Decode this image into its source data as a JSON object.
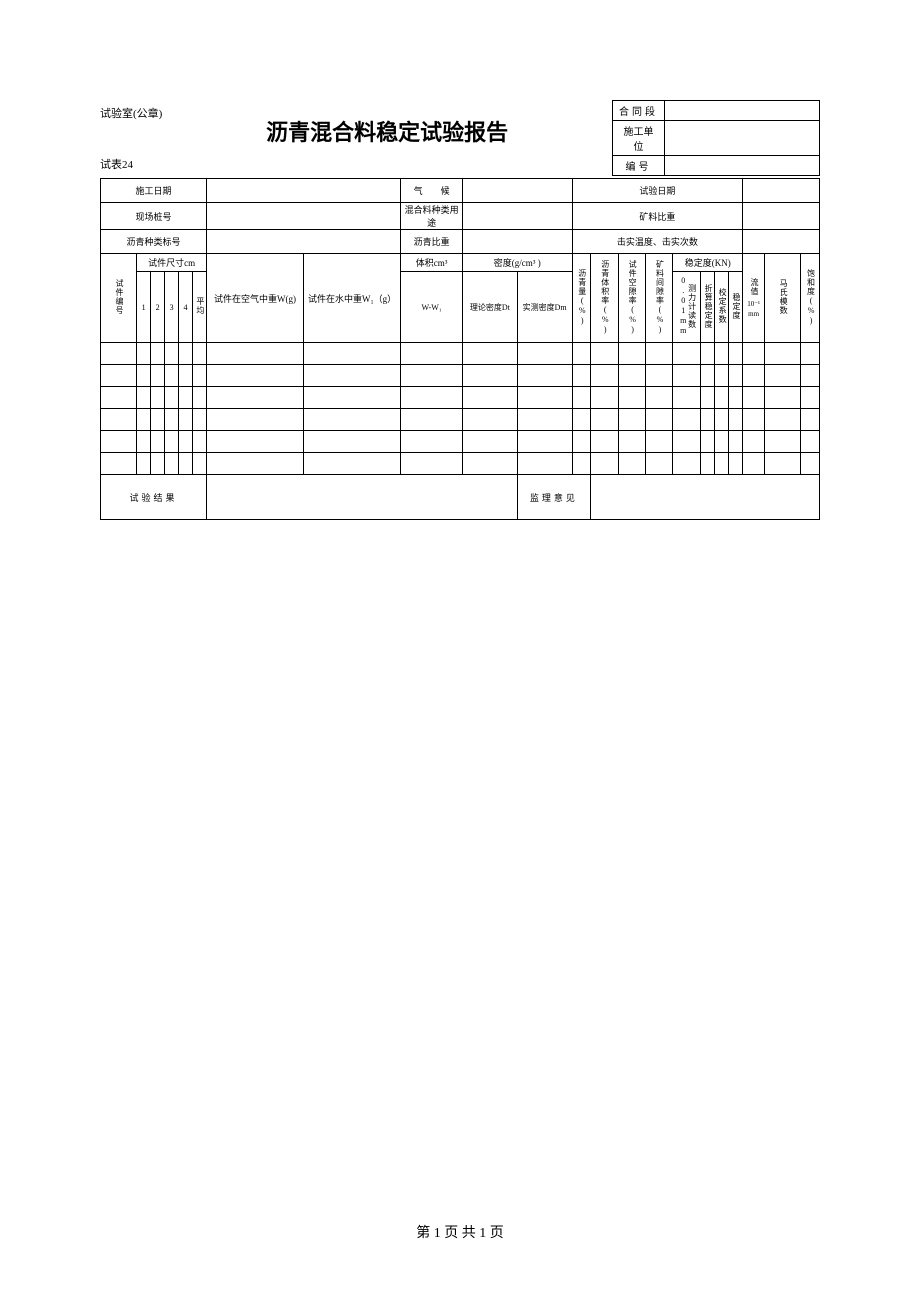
{
  "header": {
    "stamp_label": "试验室(公章)",
    "title": "沥青混合料稳定试验报告",
    "table_num": "试表24",
    "right_box": {
      "row1_label": "合同段",
      "row1_value": "",
      "row2_label": "施工单位",
      "row2_value": "",
      "row3_label": "编号",
      "row3_value": ""
    }
  },
  "info_rows": {
    "r1c1": "施工日期",
    "r1c2": "",
    "r1c3": "气　　候",
    "r1c4": "",
    "r1c5": "试验日期",
    "r1c6": "",
    "r2c1": "现场桩号",
    "r2c2": "",
    "r2c3": "混合料种类用途",
    "r2c4": "",
    "r2c5": "矿料比重",
    "r2c6": "",
    "r3c1": "沥青种类标号",
    "r3c2": "",
    "r3c3": "沥青比重",
    "r3c4": "",
    "r3c5": "击实温度、击实次数",
    "r3c6": ""
  },
  "table_headers": {
    "specimen_no": "试件编号",
    "specimen_size": "试件尺寸cm",
    "size1": "1",
    "size2": "2",
    "size3": "3",
    "size4": "4",
    "avg": "平均",
    "weight_air": "试件在空气中重W(g)",
    "weight_water": "试件在水中重W₁（g）",
    "volume": "体积cm³",
    "volume_sub": "W-W₁",
    "density": "密度(g/cm³ )",
    "density_theory": "理论密度Dt",
    "density_measured": "实测密度Dm",
    "asphalt_content": "沥青量(%)",
    "asphalt_vol": "沥青体积率(%)",
    "void_rate": "试件空隙率(%)",
    "mineral_void": "矿料间隙率(%)",
    "stability": "稳定度(KN)",
    "force_reading": "测力计读数0.01mm",
    "calc_stability": "折算稳定度",
    "correction": "校定系数",
    "stability_val": "稳定度",
    "flow": "流值",
    "flow_unit": "10⁻¹ mm",
    "marshall": "马氏模数",
    "saturation": "饱和度(%)"
  },
  "footer_labels": {
    "test_result": "试验结果",
    "supervisor_opinion": "监理意见"
  },
  "page_footer": "第 1 页 共 1 页",
  "rows": 6
}
